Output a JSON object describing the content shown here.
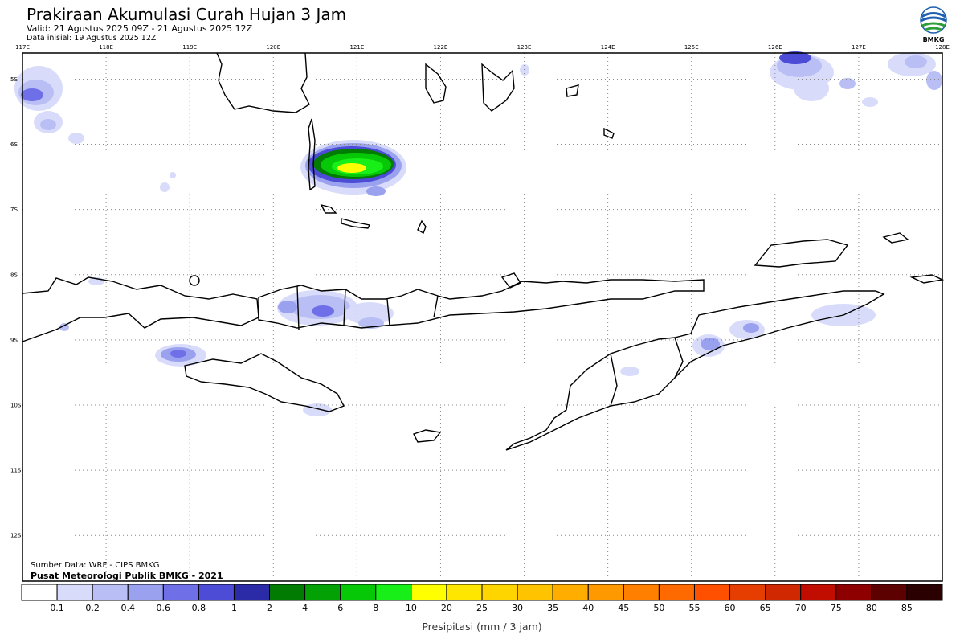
{
  "header": {
    "title": "Prakiraan Akumulasi Curah Hujan 3 Jam",
    "valid": "Valid: 21 Agustus 2025 09Z - 21 Agustus 2025 12Z",
    "initial": "Data inisial: 19 Agustus 2025 12Z"
  },
  "logo": {
    "text": "BMKG",
    "icon": "bmkg-logo-icon",
    "colors": [
      "#1f5fb0",
      "#2e9e3a"
    ]
  },
  "map": {
    "longitudes": [
      "117E",
      "118E",
      "119E",
      "120E",
      "121E",
      "122E",
      "123E",
      "124E",
      "125E",
      "126E",
      "127E",
      "128E"
    ],
    "latitudes": [
      "5S",
      "6S",
      "7S",
      "8S",
      "9S",
      "10S",
      "11S",
      "12S"
    ],
    "lon_range": [
      117,
      128
    ],
    "lat_range": [
      -4.6,
      -12.7
    ],
    "source": "Sumber Data: WRF - CIPS BMKG",
    "credit": "Pusat Meteorologi Publik BMKG - 2021"
  },
  "legend": {
    "title": "Presipitasi (mm / 3 jam)",
    "thresholds": [
      "0.1",
      "0.2",
      "0.4",
      "0.6",
      "0.8",
      "1",
      "2",
      "4",
      "6",
      "8",
      "10",
      "20",
      "25",
      "30",
      "35",
      "40",
      "45",
      "50",
      "55",
      "60",
      "65",
      "70",
      "75",
      "80",
      "85"
    ],
    "colors": [
      "#ffffff",
      "#d8dcfa",
      "#b9bff4",
      "#9aa1ef",
      "#6f6fe8",
      "#4c4cd6",
      "#2b2ba8",
      "#027b02",
      "#04a104",
      "#06c806",
      "#18ef18",
      "#ffff00",
      "#ffe600",
      "#ffd500",
      "#ffc300",
      "#ffae00",
      "#ff9900",
      "#ff8000",
      "#ff6a00",
      "#ff5000",
      "#e63e00",
      "#d02800",
      "#c00d00",
      "#8e0000",
      "#5c0000",
      "#2a0000"
    ]
  }
}
